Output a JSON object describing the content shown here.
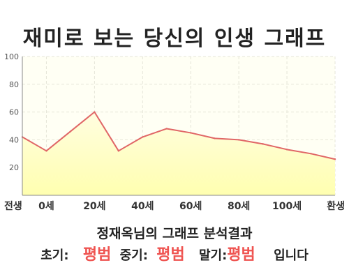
{
  "title": "재미로 보는 당신의 인생 그래프",
  "chart_data": {
    "type": "area",
    "ylim": [
      0,
      100
    ],
    "yticks": [
      0,
      20,
      40,
      60,
      80,
      100
    ],
    "ytick_labels": [
      "",
      "20",
      "40",
      "60",
      "80",
      "100"
    ],
    "xlim": [
      -10,
      120
    ],
    "xtick_positions": [
      -10,
      0,
      20,
      40,
      60,
      80,
      100,
      120
    ],
    "xtick_labels": [
      "전생",
      "0세",
      "20세",
      "40세",
      "60세",
      "80세",
      "100세",
      "환생"
    ],
    "x": [
      -10,
      0,
      10,
      20,
      30,
      40,
      50,
      60,
      70,
      80,
      90,
      100,
      110,
      120
    ],
    "values": [
      42,
      32,
      46,
      60,
      32,
      42,
      48,
      45,
      41,
      40,
      37,
      33,
      30,
      26
    ],
    "grid": true,
    "line_color": "#e06666",
    "fill_top_color": "#fffde0",
    "fill_bottom_color": "#ffffb0"
  },
  "result": {
    "title": "정재옥님의 그래프 분석결과",
    "early_label": "초기:",
    "early_value": "평범",
    "mid_label": "중기:",
    "mid_value": "평범",
    "late_label": "말기:",
    "late_value": "평범",
    "suffix": "입니다",
    "accent_color": "#ef5350"
  }
}
